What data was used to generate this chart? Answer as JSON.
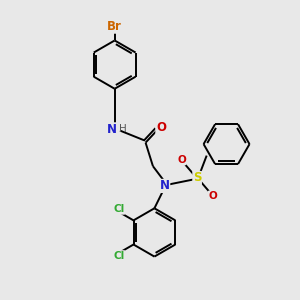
{
  "bg_color": "#e8e8e8",
  "atom_colors": {
    "C": "#000000",
    "N": "#2222cc",
    "O": "#cc0000",
    "S": "#cccc00",
    "Br": "#cc6600",
    "Cl": "#33aa33"
  },
  "bond_color": "#000000",
  "bond_width": 1.4,
  "font_size": 8.5
}
